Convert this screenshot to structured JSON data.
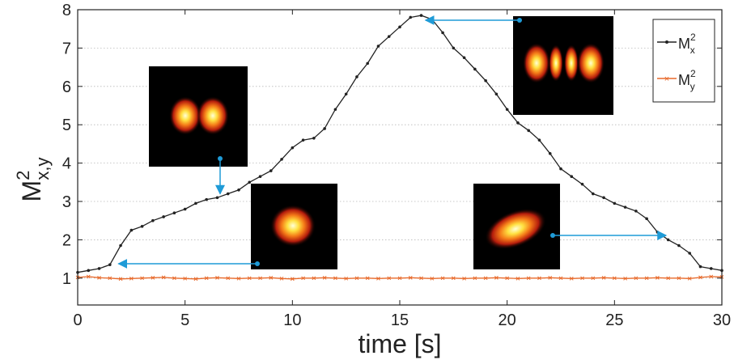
{
  "chart_data": {
    "type": "line",
    "xlabel": "time [s]",
    "ylabel": "M",
    "ylabel_sup": "2",
    "ylabel_sub": "x,y",
    "xlim": [
      0,
      30
    ],
    "ylim": [
      0.3,
      8
    ],
    "xticks": [
      "0",
      "5",
      "10",
      "15",
      "20",
      "25",
      "30"
    ],
    "yticks": [
      "1",
      "2",
      "3",
      "4",
      "5",
      "6",
      "7",
      "8"
    ],
    "grid": "horizontal-dotted",
    "legend_placement": "top-right",
    "series": [
      {
        "name": "M",
        "name_sup": "2",
        "name_sub": "x",
        "color": "#222222",
        "marker": "dot",
        "x": [
          0,
          0.5,
          1,
          1.5,
          2,
          2.5,
          3,
          3.5,
          4,
          4.5,
          5,
          5.5,
          6,
          6.5,
          7,
          7.5,
          8,
          8.5,
          9,
          9.5,
          10,
          10.5,
          11,
          11.5,
          12,
          12.5,
          13,
          13.5,
          14,
          14.5,
          15,
          15.5,
          16,
          16.5,
          17,
          17.5,
          18,
          18.5,
          19,
          19.5,
          20,
          20.5,
          21,
          21.5,
          22,
          22.5,
          23,
          23.5,
          24,
          24.5,
          25,
          25.5,
          26,
          26.5,
          27,
          27.5,
          28,
          28.5,
          29,
          29.5,
          30
        ],
        "y": [
          1.15,
          1.2,
          1.25,
          1.35,
          1.85,
          2.25,
          2.35,
          2.5,
          2.6,
          2.7,
          2.8,
          2.95,
          3.05,
          3.1,
          3.2,
          3.3,
          3.5,
          3.65,
          3.8,
          4.1,
          4.4,
          4.6,
          4.65,
          4.9,
          5.4,
          5.8,
          6.25,
          6.6,
          7.05,
          7.3,
          7.55,
          7.8,
          7.85,
          7.75,
          7.4,
          7.0,
          6.75,
          6.45,
          6.15,
          5.8,
          5.4,
          5.05,
          4.85,
          4.6,
          4.25,
          3.85,
          3.65,
          3.45,
          3.2,
          3.1,
          2.95,
          2.85,
          2.75,
          2.55,
          2.2,
          2.0,
          1.85,
          1.65,
          1.3,
          1.25,
          1.2
        ]
      },
      {
        "name": "M",
        "name_sup": "2",
        "name_sub": "y",
        "color": "#e8692a",
        "marker": "x",
        "x": [
          0,
          0.5,
          1,
          1.5,
          2,
          2.5,
          3,
          3.5,
          4,
          4.5,
          5,
          5.5,
          6,
          6.5,
          7,
          7.5,
          8,
          8.5,
          9,
          9.5,
          10,
          10.5,
          11,
          11.5,
          12,
          12.5,
          13,
          13.5,
          14,
          14.5,
          15,
          15.5,
          16,
          16.5,
          17,
          17.5,
          18,
          18.5,
          19,
          19.5,
          20,
          20.5,
          21,
          21.5,
          22,
          22.5,
          23,
          23.5,
          24,
          24.5,
          25,
          25.5,
          26,
          26.5,
          27,
          27.5,
          28,
          28.5,
          29,
          29.5,
          30
        ],
        "y": [
          1.02,
          1.04,
          1.01,
          1.0,
          0.98,
          0.99,
          1.0,
          1.01,
          1.02,
          1.0,
          0.99,
          0.98,
          1.0,
          1.01,
          1.0,
          0.99,
          1.0,
          1.0,
          1.01,
          0.99,
          0.98,
          1.0,
          1.0,
          1.01,
          1.0,
          0.99,
          1.0,
          1.0,
          0.99,
          1.0,
          1.0,
          1.01,
          1.0,
          0.99,
          1.0,
          1.0,
          0.99,
          1.0,
          1.0,
          1.01,
          1.0,
          0.99,
          1.0,
          1.0,
          1.01,
          1.0,
          0.99,
          1.0,
          1.0,
          1.01,
          1.0,
          0.99,
          1.0,
          1.0,
          1.01,
          1.0,
          1.0,
          0.99,
          1.02,
          1.04,
          1.03
        ]
      }
    ],
    "annotations": [
      {
        "kind": "beam-image",
        "pattern": "single",
        "points_to": [
          1.9,
          1.45
        ]
      },
      {
        "kind": "beam-image",
        "pattern": "double",
        "points_to": [
          6.6,
          3.2
        ]
      },
      {
        "kind": "beam-image",
        "pattern": "multi",
        "points_to": [
          16.2,
          7.8
        ]
      },
      {
        "kind": "beam-image",
        "pattern": "elongated",
        "points_to": [
          27.4,
          2.1
        ]
      }
    ],
    "arrow_color": "#1f9bd7"
  }
}
